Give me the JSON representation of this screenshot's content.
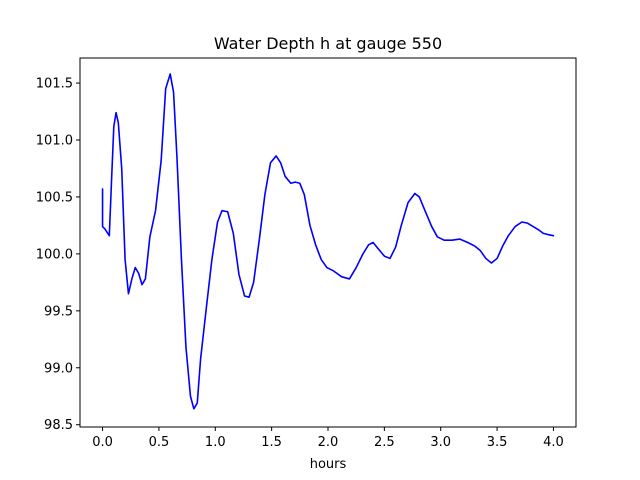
{
  "chart_data": {
    "type": "line",
    "title": "Water Depth h at gauge 550",
    "xlabel": "hours",
    "ylabel": "",
    "xlim": [
      -0.2,
      4.2
    ],
    "ylim": [
      98.48,
      101.72
    ],
    "x_ticks": [
      0.0,
      0.5,
      1.0,
      1.5,
      2.0,
      2.5,
      3.0,
      3.5,
      4.0
    ],
    "x_tick_labels": [
      "0.0",
      "0.5",
      "1.0",
      "1.5",
      "2.0",
      "2.5",
      "3.0",
      "3.5",
      "4.0"
    ],
    "y_ticks": [
      98.5,
      99.0,
      99.5,
      100.0,
      100.5,
      101.0,
      101.5
    ],
    "y_tick_labels": [
      "98.5",
      "99.0",
      "99.5",
      "100.0",
      "100.5",
      "101.0",
      "101.5"
    ],
    "grid": false,
    "legend": "none",
    "series": [
      {
        "color": "#0000ff",
        "x": [
          0.0,
          0.0,
          0.02,
          0.06,
          0.08,
          0.1,
          0.12,
          0.14,
          0.17,
          0.2,
          0.23,
          0.26,
          0.29,
          0.32,
          0.35,
          0.38,
          0.42,
          0.47,
          0.52,
          0.56,
          0.6,
          0.63,
          0.66,
          0.7,
          0.74,
          0.78,
          0.81,
          0.84,
          0.87,
          0.92,
          0.97,
          1.02,
          1.06,
          1.11,
          1.16,
          1.21,
          1.26,
          1.3,
          1.34,
          1.39,
          1.44,
          1.49,
          1.54,
          1.58,
          1.62,
          1.67,
          1.71,
          1.75,
          1.79,
          1.84,
          1.89,
          1.94,
          1.99,
          2.05,
          2.12,
          2.19,
          2.25,
          2.31,
          2.36,
          2.4,
          2.45,
          2.5,
          2.55,
          2.6,
          2.65,
          2.71,
          2.77,
          2.81,
          2.86,
          2.92,
          2.97,
          3.03,
          3.1,
          3.17,
          3.24,
          3.3,
          3.35,
          3.4,
          3.45,
          3.5,
          3.55,
          3.6,
          3.66,
          3.72,
          3.77,
          3.82,
          3.87,
          3.91,
          3.95,
          4.0
        ],
        "y": [
          100.57,
          100.24,
          100.22,
          100.16,
          100.65,
          101.12,
          101.24,
          101.15,
          100.75,
          99.95,
          99.65,
          99.78,
          99.88,
          99.83,
          99.73,
          99.78,
          100.15,
          100.38,
          100.82,
          101.45,
          101.58,
          101.42,
          100.85,
          99.95,
          99.18,
          98.75,
          98.64,
          98.69,
          99.08,
          99.52,
          99.95,
          100.28,
          100.38,
          100.37,
          100.18,
          99.82,
          99.63,
          99.62,
          99.75,
          100.12,
          100.52,
          100.8,
          100.86,
          100.8,
          100.68,
          100.62,
          100.63,
          100.62,
          100.52,
          100.25,
          100.08,
          99.95,
          99.88,
          99.85,
          99.8,
          99.78,
          99.88,
          100.0,
          100.08,
          100.1,
          100.04,
          99.98,
          99.96,
          100.06,
          100.25,
          100.45,
          100.53,
          100.5,
          100.38,
          100.24,
          100.15,
          100.12,
          100.12,
          100.13,
          100.1,
          100.07,
          100.03,
          99.96,
          99.92,
          99.96,
          100.07,
          100.16,
          100.24,
          100.28,
          100.27,
          100.24,
          100.21,
          100.18,
          100.17,
          100.16
        ]
      }
    ]
  }
}
